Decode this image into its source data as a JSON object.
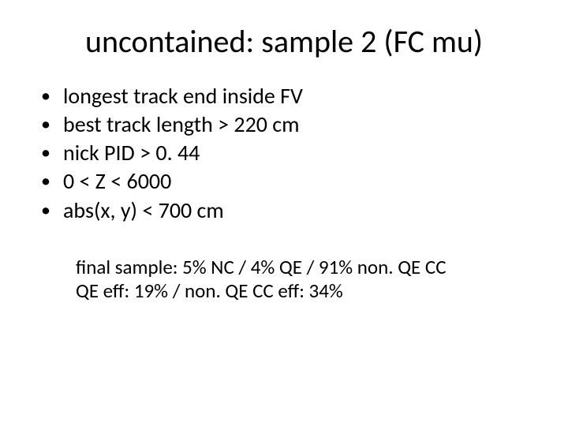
{
  "title": "uncontained: sample 2 (FC mu)",
  "bullets": [
    "longest track end inside FV",
    "best track length > 220 cm",
    "nick PID > 0. 44",
    "0 < Z < 6000",
    "abs(x, y) < 700 cm"
  ],
  "summary": {
    "line1": "final sample: 5% NC / 4% QE / 91% non. QE CC",
    "line2": "QE eff: 19% / non. QE CC eff: 34%"
  },
  "style": {
    "background_color": "#ffffff",
    "text_color": "#000000",
    "title_fontsize": 40,
    "bullet_fontsize": 28,
    "summary_fontsize": 25,
    "font_family": "Calibri"
  }
}
